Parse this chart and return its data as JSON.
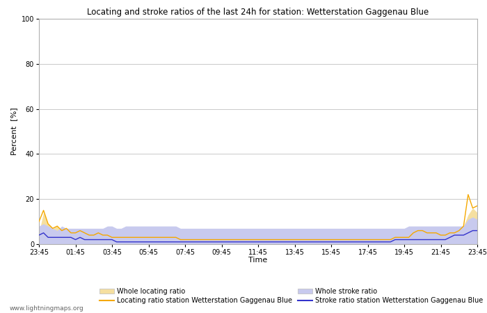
{
  "title": "Locating and stroke ratios of the last 24h for station: Wetterstation Gaggenau Blue",
  "xlabel": "Time",
  "ylabel": "Percent  [%]",
  "ylim": [
    0,
    100
  ],
  "yticks": [
    0,
    20,
    40,
    60,
    80,
    100
  ],
  "x_labels": [
    "23:45",
    "01:45",
    "03:45",
    "05:45",
    "07:45",
    "09:45",
    "11:45",
    "13:45",
    "15:45",
    "17:45",
    "19:45",
    "21:45",
    "23:45"
  ],
  "watermark": "www.lightningmaps.org",
  "whole_locating_color": "#f5dfa0",
  "whole_stroke_color": "#c8caee",
  "locating_line_color": "#f5a800",
  "stroke_line_color": "#3333cc",
  "legend_row1": [
    "Whole locating ratio",
    "Locating ratio station Wetterstation Gaggenau Blue"
  ],
  "legend_row2": [
    "Whole stroke ratio",
    "Stroke ratio station Wetterstation Gaggenau Blue"
  ],
  "n_points": 97,
  "whole_locating": [
    5,
    14,
    9,
    7,
    8,
    6,
    7,
    5,
    5,
    6,
    5,
    4,
    4,
    4,
    4,
    4,
    3,
    3,
    3,
    3,
    3,
    3,
    3,
    3,
    3,
    3,
    3,
    3,
    3,
    3,
    3,
    2,
    2,
    2,
    2,
    2,
    2,
    2,
    2,
    2,
    2,
    2,
    2,
    2,
    2,
    2,
    2,
    2,
    2,
    2,
    2,
    2,
    2,
    2,
    2,
    2,
    2,
    2,
    2,
    2,
    2,
    2,
    2,
    2,
    2,
    2,
    2,
    2,
    2,
    2,
    2,
    2,
    2,
    2,
    2,
    2,
    2,
    2,
    3,
    3,
    3,
    3,
    5,
    6,
    6,
    5,
    5,
    5,
    4,
    4,
    5,
    5,
    6,
    8,
    13,
    16,
    14
  ],
  "locating_line": [
    10,
    15,
    9,
    7,
    8,
    6,
    7,
    5,
    5,
    6,
    5,
    4,
    4,
    5,
    4,
    4,
    3,
    3,
    3,
    3,
    3,
    3,
    3,
    3,
    3,
    3,
    3,
    3,
    3,
    3,
    3,
    2,
    2,
    2,
    2,
    2,
    2,
    2,
    2,
    2,
    2,
    2,
    2,
    2,
    2,
    2,
    2,
    2,
    2,
    2,
    2,
    2,
    2,
    2,
    2,
    2,
    2,
    2,
    2,
    2,
    2,
    2,
    2,
    2,
    2,
    2,
    2,
    2,
    2,
    2,
    2,
    2,
    2,
    2,
    2,
    2,
    2,
    2,
    3,
    3,
    3,
    3,
    5,
    6,
    6,
    5,
    5,
    5,
    4,
    4,
    5,
    5,
    6,
    8,
    22,
    16,
    17
  ],
  "whole_stroke": [
    8,
    9,
    8,
    7,
    6,
    8,
    7,
    7,
    7,
    7,
    7,
    7,
    7,
    7,
    7,
    8,
    8,
    7,
    7,
    8,
    8,
    8,
    8,
    8,
    8,
    8,
    8,
    8,
    8,
    8,
    8,
    7,
    7,
    7,
    7,
    7,
    7,
    7,
    7,
    7,
    7,
    7,
    7,
    7,
    7,
    7,
    7,
    7,
    7,
    7,
    7,
    7,
    7,
    7,
    7,
    7,
    7,
    7,
    7,
    7,
    7,
    7,
    7,
    7,
    7,
    7,
    7,
    7,
    7,
    7,
    7,
    7,
    7,
    7,
    7,
    7,
    7,
    7,
    7,
    7,
    7,
    8,
    8,
    8,
    8,
    8,
    8,
    8,
    8,
    8,
    8,
    8,
    8,
    8,
    11,
    12,
    11
  ],
  "stroke_line": [
    4,
    5,
    3,
    3,
    3,
    3,
    3,
    3,
    2,
    3,
    2,
    2,
    2,
    2,
    2,
    2,
    2,
    1,
    1,
    1,
    1,
    1,
    1,
    1,
    1,
    1,
    1,
    1,
    1,
    1,
    1,
    1,
    1,
    1,
    1,
    1,
    1,
    1,
    1,
    1,
    1,
    1,
    1,
    1,
    1,
    1,
    1,
    1,
    1,
    1,
    1,
    1,
    1,
    1,
    1,
    1,
    1,
    1,
    1,
    1,
    1,
    1,
    1,
    1,
    1,
    1,
    1,
    1,
    1,
    1,
    1,
    1,
    1,
    1,
    1,
    1,
    1,
    1,
    2,
    2,
    2,
    2,
    2,
    2,
    2,
    2,
    2,
    2,
    2,
    2,
    3,
    4,
    4,
    4,
    5,
    6,
    6
  ]
}
